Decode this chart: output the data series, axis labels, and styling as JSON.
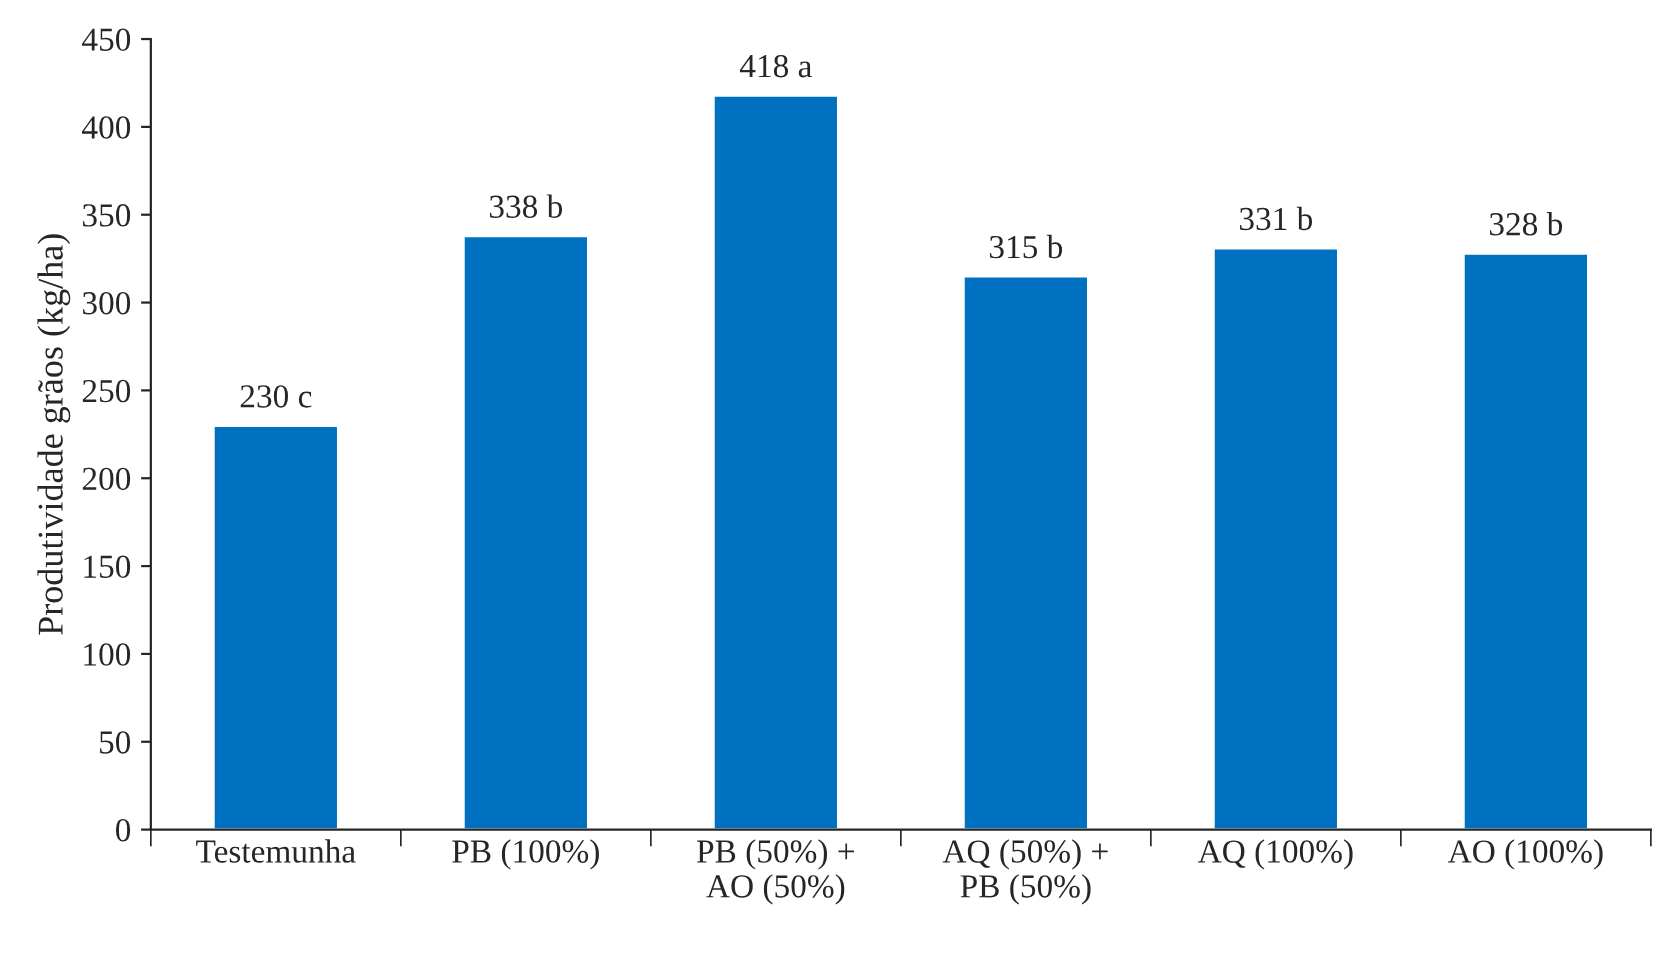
{
  "chart_data": {
    "type": "bar",
    "ylabel": "Produtividade grãos (kg/ha)",
    "categories": [
      "Testemunha",
      "PB (100%)",
      "PB (50%) +\nAO (50%)",
      "AQ (50%) +\nPB (50%)",
      "AQ (100%)",
      "AO (100%)"
    ],
    "values": [
      230,
      338,
      418,
      315,
      331,
      328
    ],
    "value_labels": [
      "230 c",
      "338 b",
      "418 a",
      "315 b",
      "331 b",
      "328 b"
    ],
    "color": "#0070c0",
    "ylim": [
      0,
      450
    ],
    "yticks": [
      0,
      50,
      100,
      150,
      200,
      250,
      300,
      350,
      400,
      450
    ],
    "grid": false,
    "legend": false
  }
}
